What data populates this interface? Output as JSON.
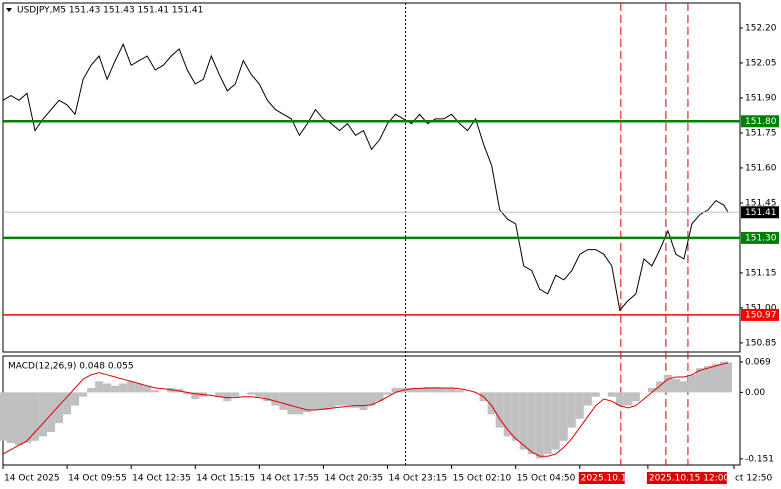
{
  "chart_data": [
    {
      "type": "line",
      "title": "USDJPY,M5  151.43 151.43 151.41 151.41",
      "color": "#000000",
      "x": [
        0,
        4,
        8,
        12,
        16,
        20,
        24,
        28,
        32,
        36,
        40,
        44,
        48,
        52,
        56,
        60,
        64,
        68,
        72,
        76,
        80,
        84,
        88,
        92,
        96,
        100,
        104,
        108,
        112,
        116,
        120,
        124,
        128,
        132,
        136,
        140,
        144,
        148,
        152,
        156,
        160,
        164,
        168,
        172,
        176,
        180,
        184,
        188,
        192,
        196,
        200,
        204,
        208,
        212,
        216,
        220,
        224,
        228,
        232,
        236,
        240,
        244,
        248,
        252,
        256,
        260,
        264,
        268,
        272,
        276,
        280,
        284,
        288,
        292,
        296,
        300,
        304,
        308,
        312,
        316,
        320,
        324,
        328,
        332,
        336,
        340,
        344,
        348,
        352,
        356,
        360,
        362
      ],
      "values": [
        151.89,
        151.91,
        151.89,
        151.92,
        151.76,
        151.81,
        151.85,
        151.89,
        151.87,
        151.83,
        151.98,
        152.04,
        152.08,
        151.98,
        152.06,
        152.13,
        152.04,
        152.06,
        152.08,
        152.02,
        152.04,
        152.08,
        152.11,
        152.02,
        151.96,
        151.98,
        152.08,
        152.0,
        151.93,
        151.96,
        152.06,
        152.0,
        151.96,
        151.89,
        151.85,
        151.83,
        151.81,
        151.74,
        151.79,
        151.85,
        151.81,
        151.79,
        151.76,
        151.79,
        151.74,
        151.76,
        151.68,
        151.72,
        151.79,
        151.83,
        151.81,
        151.79,
        151.83,
        151.79,
        151.81,
        151.81,
        151.83,
        151.79,
        151.76,
        151.81,
        151.7,
        151.61,
        151.42,
        151.38,
        151.36,
        151.18,
        151.16,
        151.08,
        151.06,
        151.14,
        151.12,
        151.16,
        151.23,
        151.25,
        151.25,
        151.23,
        151.18,
        150.99,
        151.03,
        151.06,
        151.21,
        151.18,
        151.25,
        151.33,
        151.23,
        151.21,
        151.36,
        151.4,
        151.42,
        151.46,
        151.44,
        151.41
      ],
      "xlim": [
        0,
        368
      ],
      "ylim": [
        150.811,
        152.307
      ],
      "yticks": [
        {
          "value": 152.2,
          "label": "152.20"
        },
        {
          "value": 152.05,
          "label": "152.05"
        },
        {
          "value": 151.9,
          "label": "151.90"
        },
        {
          "value": 151.75,
          "label": "151.75"
        },
        {
          "value": 151.6,
          "label": "151.60"
        },
        {
          "value": 151.45,
          "label": "151.45"
        },
        {
          "value": 151.15,
          "label": "151.15"
        },
        {
          "value": 151,
          "label": "151.00"
        },
        {
          "value": 150.85,
          "label": "150.85"
        }
      ],
      "levels": [
        {
          "value": 151.8,
          "label": "151.80",
          "color": "#008000"
        },
        {
          "value": 151.3,
          "label": "151.30",
          "color": "#008000"
        },
        {
          "value": 150.97,
          "label": "150.97",
          "color": "#ff0000"
        },
        {
          "value": 151.41,
          "label": "151.41",
          "color": "#000000"
        }
      ],
      "vlines": [
        {
          "value": 201,
          "color": "#000000"
        },
        {
          "value": 308.5,
          "color": "#e00000"
        },
        {
          "value": 331,
          "color": "#e00000"
        },
        {
          "value": 342,
          "color": "#e00000"
        }
      ]
    },
    {
      "type": "bar",
      "title": "MACD(12,26,9) 0.048 0.055",
      "series": [
        {
          "type": "bar",
          "color": "#c0c0c0",
          "values": [
            -0.11,
            -0.115,
            -0.12,
            -0.115,
            -0.11,
            -0.1,
            -0.09,
            -0.07,
            -0.05,
            -0.03,
            -0.01,
            0.01,
            0.025,
            0.02,
            0.015,
            0.02,
            0.025,
            0.02,
            0.015,
            0.005,
            0.0,
            0.01,
            0.008,
            -0.005,
            -0.015,
            -0.01,
            0.0,
            -0.01,
            -0.02,
            -0.01,
            0.0,
            -0.005,
            -0.01,
            -0.02,
            -0.03,
            -0.04,
            -0.05,
            -0.05,
            -0.045,
            -0.04,
            -0.04,
            -0.035,
            -0.03,
            -0.03,
            -0.035,
            -0.04,
            -0.03,
            -0.02,
            -0.005,
            0.01,
            0.01,
            0.01,
            0.01,
            0.012,
            0.012,
            0.01,
            0.01,
            0.005,
            0.0,
            0.0,
            -0.02,
            -0.05,
            -0.08,
            -0.1,
            -0.11,
            -0.13,
            -0.14,
            -0.15,
            -0.14,
            -0.13,
            -0.11,
            -0.08,
            -0.06,
            -0.03,
            -0.01,
            0.0,
            -0.01,
            -0.03,
            -0.03,
            -0.02,
            0.0,
            0.01,
            0.025,
            0.04,
            0.03,
            0.025,
            0.04,
            0.055,
            0.06,
            0.065,
            0.07,
            0.068
          ]
        },
        {
          "type": "line",
          "color": "#e00000",
          "values": [
            -0.14,
            -0.13,
            -0.12,
            -0.11,
            -0.09,
            -0.07,
            -0.05,
            -0.03,
            -0.01,
            0.01,
            0.03,
            0.04,
            0.045,
            0.04,
            0.035,
            0.03,
            0.025,
            0.02,
            0.015,
            0.01,
            0.008,
            0.006,
            0.003,
            0.0,
            -0.003,
            -0.005,
            -0.007,
            -0.01,
            -0.012,
            -0.012,
            -0.01,
            -0.01,
            -0.012,
            -0.015,
            -0.02,
            -0.025,
            -0.03,
            -0.035,
            -0.04,
            -0.04,
            -0.038,
            -0.036,
            -0.034,
            -0.032,
            -0.03,
            -0.03,
            -0.028,
            -0.02,
            -0.01,
            0.0,
            0.005,
            0.008,
            0.009,
            0.01,
            0.01,
            0.01,
            0.01,
            0.008,
            0.005,
            0.0,
            -0.01,
            -0.03,
            -0.06,
            -0.085,
            -0.105,
            -0.12,
            -0.135,
            -0.145,
            -0.145,
            -0.14,
            -0.125,
            -0.105,
            -0.08,
            -0.055,
            -0.03,
            -0.015,
            -0.02,
            -0.03,
            -0.035,
            -0.03,
            -0.015,
            0.0,
            0.015,
            0.03,
            0.035,
            0.035,
            0.04,
            0.05,
            0.055,
            0.06,
            0.065,
            0.067
          ]
        }
      ],
      "xlim": [
        0,
        368
      ],
      "ylim": [
        -0.165,
        0.0826
      ],
      "yticks": [
        0.069,
        {
          "value": 0,
          "label": "0.00"
        },
        -0.151
      ],
      "xticks": [
        {
          "value": 0,
          "label": "14 Oct 2025"
        },
        {
          "value": 32,
          "label": "14 Oct 09:55"
        },
        {
          "value": 64,
          "label": "14 Oct 12:35"
        },
        {
          "value": 96,
          "label": "14 Oct 15:15"
        },
        {
          "value": 128,
          "label": "14 Oct 17:55"
        },
        {
          "value": 160,
          "label": "14 Oct 20:35"
        },
        {
          "value": 192,
          "label": "14 Oct 23:15"
        },
        {
          "value": 224,
          "label": "15 Oct 02:10"
        },
        {
          "value": 256,
          "label": "15 Oct 04:50"
        },
        {
          "value": 288,
          "label": "2025.10.1",
          "color": "#e00000"
        },
        {
          "value": 322,
          "label": "2025.10.15 12:00",
          "color": "#e00000"
        },
        {
          "value": 365,
          "label": "ct 12:50"
        }
      ]
    }
  ]
}
